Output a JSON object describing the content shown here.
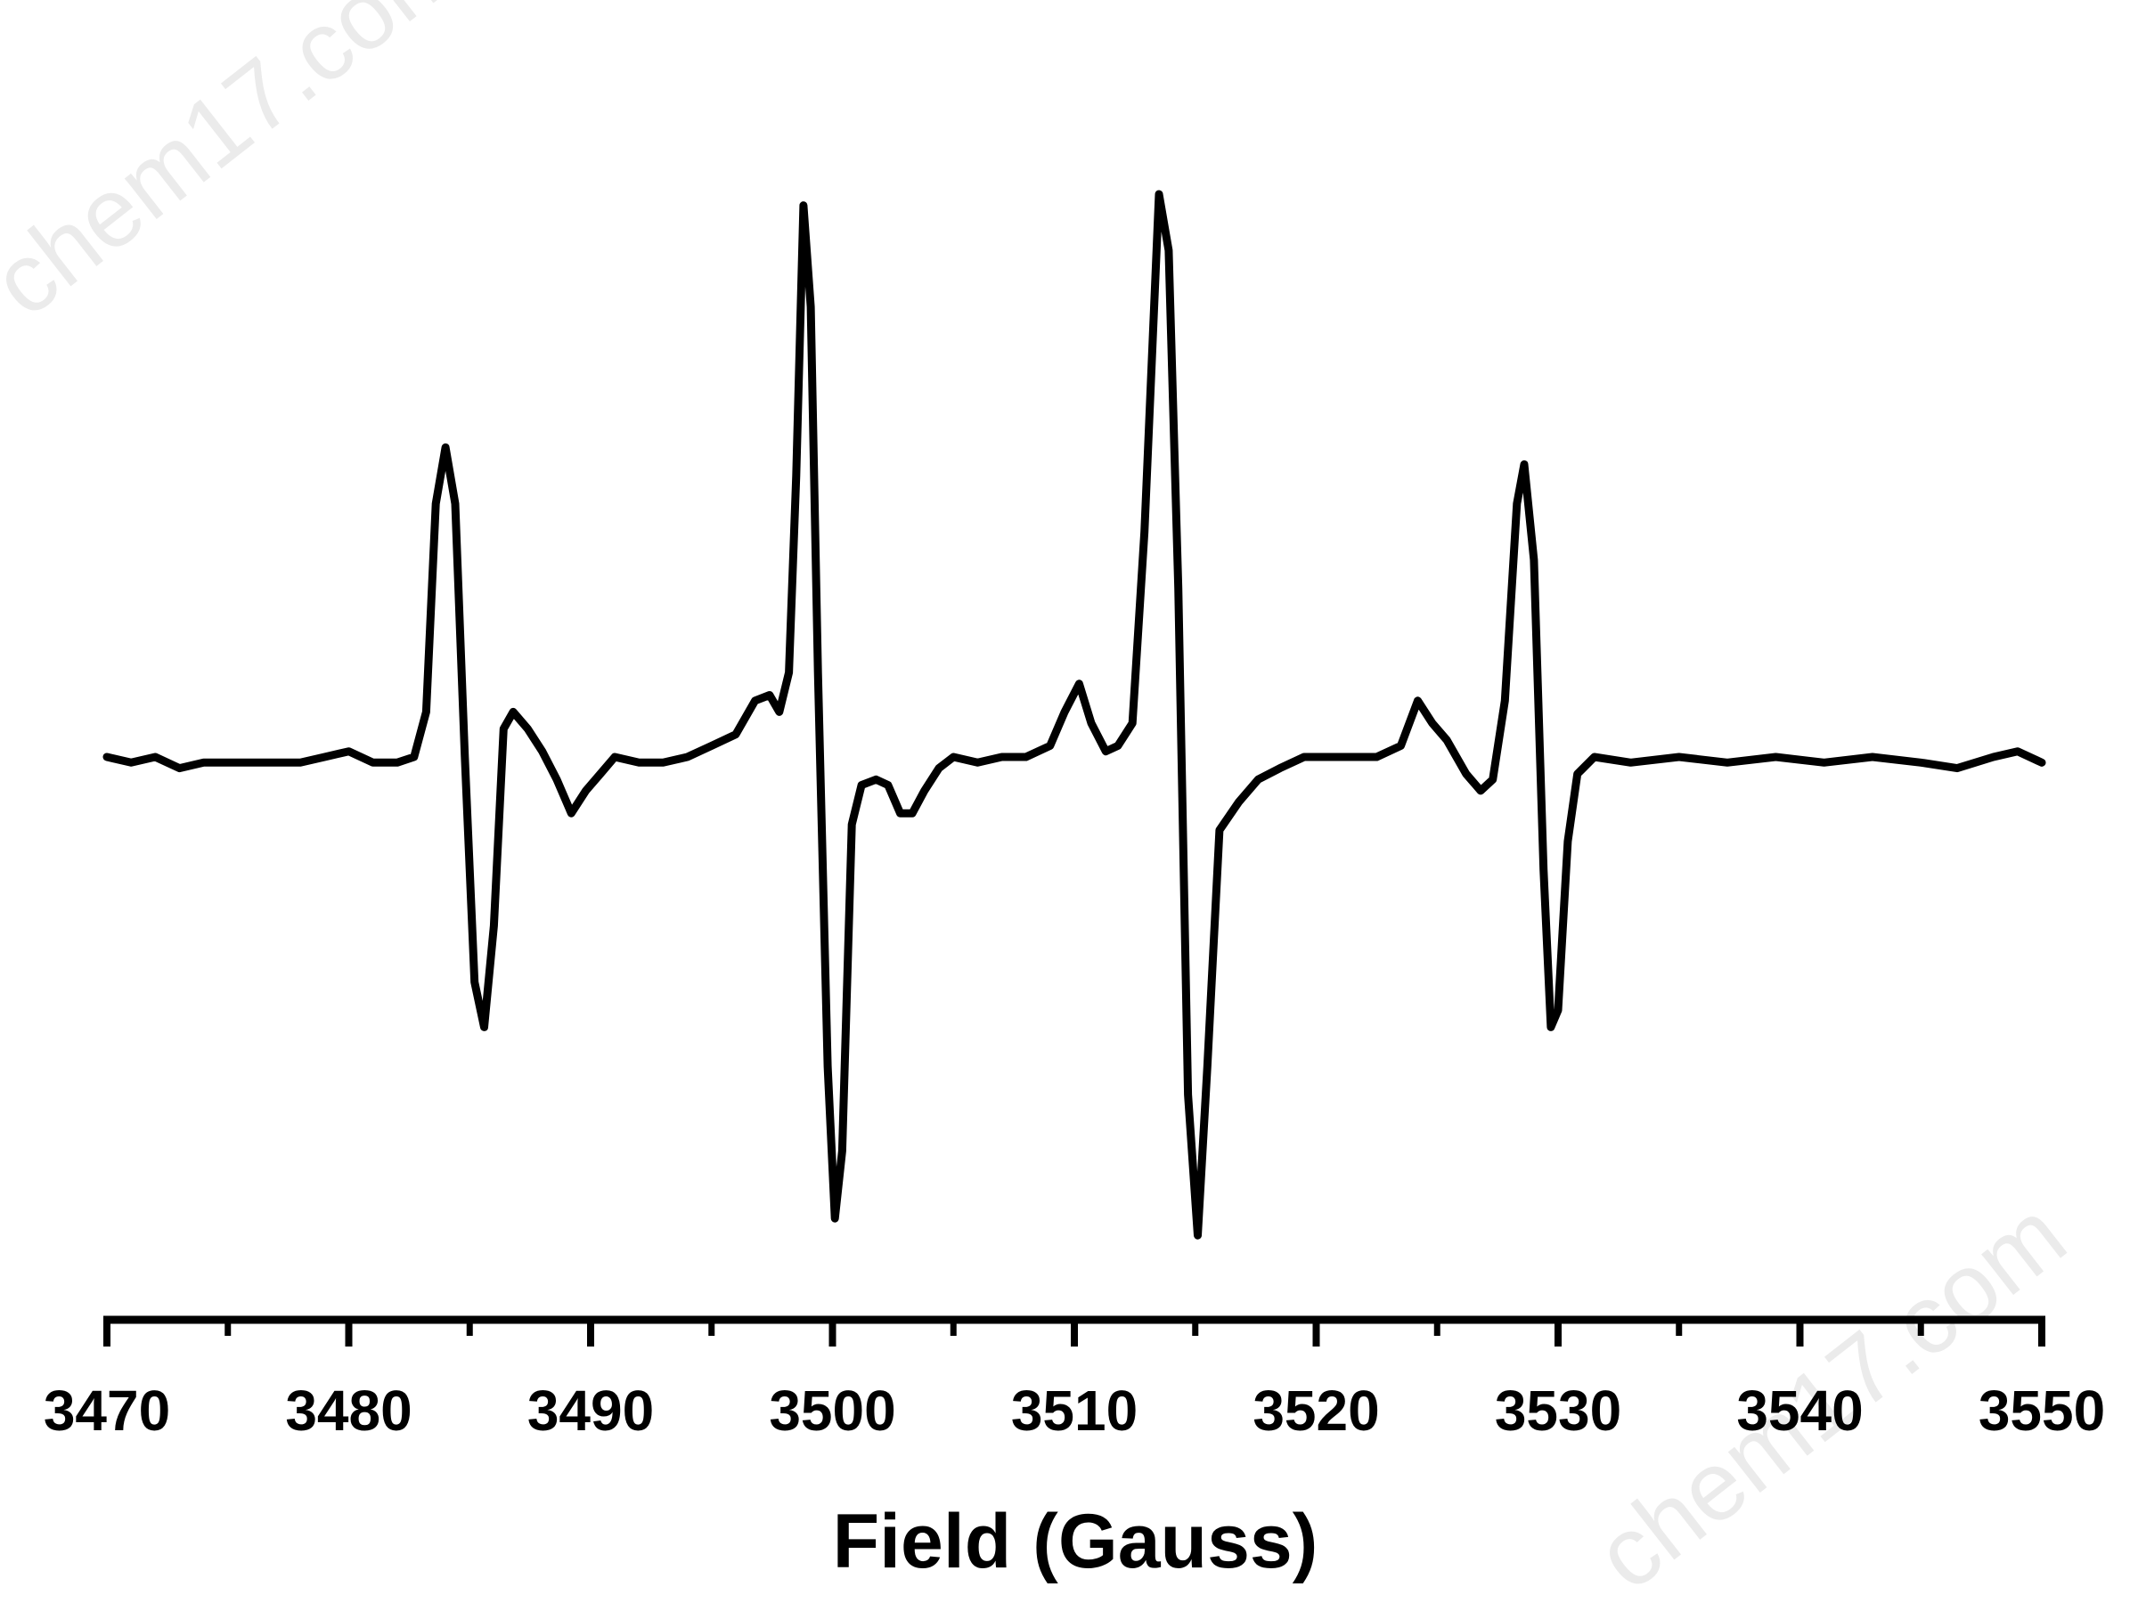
{
  "watermark": "chem17.com",
  "chart_data": {
    "type": "line",
    "xlabel": "Field (Gauss)",
    "ylabel": "",
    "xlim": [
      3470,
      3550
    ],
    "ylim": [
      -1.08,
      1.1
    ],
    "y_axis_shown": false,
    "grid": false,
    "legend": "none",
    "x_ticks": [
      3470,
      3480,
      3490,
      3500,
      3510,
      3520,
      3530,
      3540,
      3550
    ],
    "x_tick_labels": [
      "3470",
      "3480",
      "3490",
      "3500",
      "3510",
      "3520",
      "3530",
      "3540",
      "3550"
    ],
    "minor_ticks_per_interval": 1,
    "colors": {
      "line": "#000000",
      "axis": "#000000"
    },
    "series": [
      {
        "color": "#000000",
        "points": [
          [
            3470.0,
            0.0
          ],
          [
            3471.0,
            -0.01
          ],
          [
            3472.0,
            0.0
          ],
          [
            3473.0,
            -0.02
          ],
          [
            3474.0,
            -0.01
          ],
          [
            3475.0,
            -0.01
          ],
          [
            3476.0,
            -0.01
          ],
          [
            3477.0,
            -0.01
          ],
          [
            3478.0,
            -0.01
          ],
          [
            3479.0,
            0.0
          ],
          [
            3480.0,
            0.01
          ],
          [
            3481.0,
            -0.01
          ],
          [
            3482.0,
            -0.01
          ],
          [
            3482.7,
            0.0
          ],
          [
            3483.2,
            0.08
          ],
          [
            3483.6,
            0.45
          ],
          [
            3484.0,
            0.55
          ],
          [
            3484.4,
            0.45
          ],
          [
            3484.8,
            0.0
          ],
          [
            3485.2,
            -0.4
          ],
          [
            3485.6,
            -0.48
          ],
          [
            3486.0,
            -0.3
          ],
          [
            3486.4,
            0.05
          ],
          [
            3486.8,
            0.08
          ],
          [
            3487.4,
            0.05
          ],
          [
            3488.0,
            0.01
          ],
          [
            3488.6,
            -0.04
          ],
          [
            3489.2,
            -0.1
          ],
          [
            3489.8,
            -0.06
          ],
          [
            3490.4,
            -0.03
          ],
          [
            3491.0,
            0.0
          ],
          [
            3492.0,
            -0.01
          ],
          [
            3493.0,
            -0.01
          ],
          [
            3494.0,
            0.0
          ],
          [
            3495.0,
            0.02
          ],
          [
            3496.0,
            0.04
          ],
          [
            3496.8,
            0.1
          ],
          [
            3497.4,
            0.11
          ],
          [
            3497.8,
            0.08
          ],
          [
            3498.2,
            0.15
          ],
          [
            3498.5,
            0.5
          ],
          [
            3498.8,
            0.98
          ],
          [
            3499.1,
            0.8
          ],
          [
            3499.4,
            0.15
          ],
          [
            3499.8,
            -0.55
          ],
          [
            3500.1,
            -0.82
          ],
          [
            3500.4,
            -0.7
          ],
          [
            3500.8,
            -0.12
          ],
          [
            3501.2,
            -0.05
          ],
          [
            3501.8,
            -0.04
          ],
          [
            3502.3,
            -0.05
          ],
          [
            3502.8,
            -0.1
          ],
          [
            3503.3,
            -0.1
          ],
          [
            3503.8,
            -0.06
          ],
          [
            3504.4,
            -0.02
          ],
          [
            3505.0,
            0.0
          ],
          [
            3506.0,
            -0.01
          ],
          [
            3507.0,
            0.0
          ],
          [
            3508.0,
            0.0
          ],
          [
            3509.0,
            0.02
          ],
          [
            3509.6,
            0.08
          ],
          [
            3510.2,
            0.13
          ],
          [
            3510.7,
            0.06
          ],
          [
            3511.3,
            0.01
          ],
          [
            3511.8,
            0.02
          ],
          [
            3512.4,
            0.06
          ],
          [
            3512.9,
            0.4
          ],
          [
            3513.5,
            1.0
          ],
          [
            3513.9,
            0.9
          ],
          [
            3514.3,
            0.3
          ],
          [
            3514.7,
            -0.6
          ],
          [
            3515.1,
            -0.85
          ],
          [
            3515.5,
            -0.55
          ],
          [
            3516.0,
            -0.13
          ],
          [
            3516.8,
            -0.08
          ],
          [
            3517.6,
            -0.04
          ],
          [
            3518.5,
            -0.02
          ],
          [
            3519.5,
            0.0
          ],
          [
            3520.5,
            0.0
          ],
          [
            3521.5,
            0.0
          ],
          [
            3522.5,
            0.0
          ],
          [
            3523.5,
            0.02
          ],
          [
            3524.2,
            0.1
          ],
          [
            3524.8,
            0.06
          ],
          [
            3525.4,
            0.03
          ],
          [
            3526.2,
            -0.03
          ],
          [
            3526.8,
            -0.06
          ],
          [
            3527.3,
            -0.04
          ],
          [
            3527.8,
            0.1
          ],
          [
            3528.3,
            0.45
          ],
          [
            3528.6,
            0.52
          ],
          [
            3529.0,
            0.35
          ],
          [
            3529.4,
            -0.2
          ],
          [
            3529.7,
            -0.48
          ],
          [
            3530.0,
            -0.45
          ],
          [
            3530.4,
            -0.15
          ],
          [
            3530.8,
            -0.03
          ],
          [
            3531.5,
            0.0
          ],
          [
            3533.0,
            -0.01
          ],
          [
            3535.0,
            0.0
          ],
          [
            3537.0,
            -0.01
          ],
          [
            3539.0,
            0.0
          ],
          [
            3541.0,
            -0.01
          ],
          [
            3543.0,
            0.0
          ],
          [
            3545.0,
            -0.01
          ],
          [
            3546.5,
            -0.02
          ],
          [
            3548.0,
            0.0
          ],
          [
            3549.0,
            0.01
          ],
          [
            3550.0,
            -0.01
          ]
        ]
      }
    ]
  }
}
